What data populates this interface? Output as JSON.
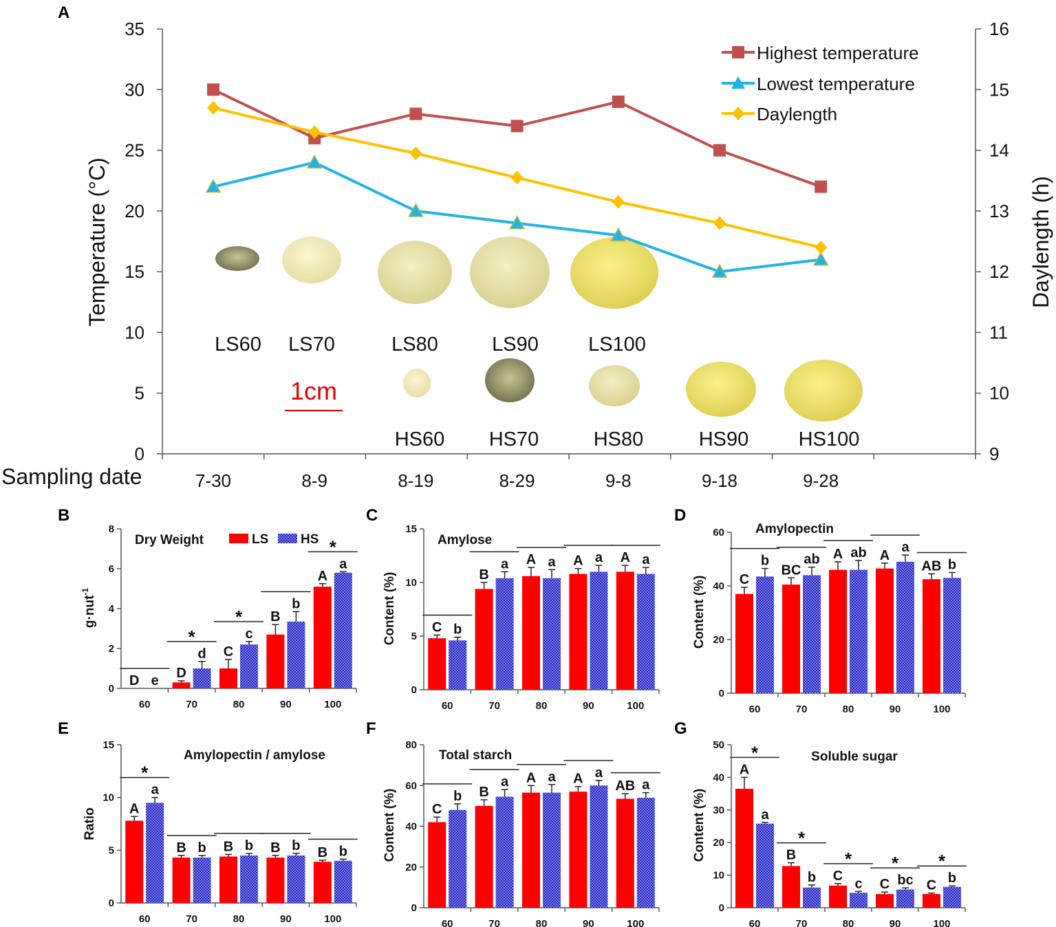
{
  "chart_data": [
    {
      "panel": "A",
      "type": "line",
      "ylabel": "Temperature (°C)",
      "y2label": "Daylength (h)",
      "xlabel": "Sampling date",
      "categories": [
        "7-30",
        "8-9",
        "8-19",
        "8-29",
        "9-8",
        "9-18",
        "9-28"
      ],
      "ylim": [
        0,
        35
      ],
      "yticks": [
        "0",
        "5",
        "10",
        "15",
        "20",
        "25",
        "30",
        "35"
      ],
      "y2lim": [
        9,
        16
      ],
      "y2ticks": [
        "9",
        "10",
        "11",
        "12",
        "13",
        "14",
        "15",
        "16"
      ],
      "series": [
        {
          "name": "Highest temperature",
          "axis": "left",
          "color": "#c0504d",
          "marker": "square",
          "values": [
            30,
            26,
            28,
            27,
            29,
            25,
            22
          ]
        },
        {
          "name": "Lowest temperature",
          "axis": "left",
          "color": "#1fb3e8",
          "marker": "triangle",
          "values": [
            22,
            24,
            20,
            19,
            18,
            15,
            16
          ]
        },
        {
          "name": "Daylength",
          "axis": "right",
          "color": "#ffc000",
          "marker": "diamond",
          "values": [
            14.7,
            14.3,
            13.95,
            13.55,
            13.15,
            12.8,
            12.4
          ]
        }
      ],
      "sample_labels_ls": [
        "LS60",
        "LS70",
        "LS80",
        "LS90",
        "LS100"
      ],
      "sample_labels_hs": [
        "HS60",
        "HS70",
        "HS80",
        "HS90",
        "HS100"
      ],
      "scale_bar_label": "1cm",
      "scale_color": "#e00000"
    },
    {
      "panel": "B",
      "type": "bar",
      "title": "Dry Weight",
      "ylabel": "g·nut",
      "ylabel_sup": "-1",
      "categories": [
        "60",
        "70",
        "80",
        "90",
        "100"
      ],
      "ylim": [
        0,
        8
      ],
      "yticks": [
        "0",
        "2",
        "4",
        "6",
        "8"
      ],
      "legend": [
        "LS",
        "HS"
      ],
      "series": [
        {
          "name": "LS",
          "color": "#ff0000",
          "values": [
            0,
            0.3,
            1.0,
            2.7,
            5.1
          ],
          "errors": [
            0,
            0.08,
            0.45,
            0.5,
            0.15
          ],
          "letters": [
            "D",
            "D",
            "C",
            "B",
            "A"
          ]
        },
        {
          "name": "HS",
          "color": "#4444dd",
          "values": [
            0,
            1.0,
            2.2,
            3.35,
            5.8
          ],
          "errors": [
            0,
            0.35,
            0.15,
            0.5,
            0.05
          ],
          "letters": [
            "e",
            "d",
            "c",
            "b",
            "a"
          ]
        }
      ],
      "significance": [
        "",
        "*",
        "*",
        "",
        "*"
      ]
    },
    {
      "panel": "C",
      "type": "bar",
      "title": "Amylose",
      "ylabel": "Content (%)",
      "categories": [
        "60",
        "70",
        "80",
        "90",
        "100"
      ],
      "ylim": [
        0,
        15
      ],
      "yticks": [
        "0",
        "5",
        "10",
        "15"
      ],
      "series": [
        {
          "name": "LS",
          "color": "#ff0000",
          "values": [
            4.8,
            9.4,
            10.6,
            10.8,
            11.0
          ],
          "errors": [
            0.3,
            0.6,
            0.8,
            0.5,
            0.6
          ],
          "letters": [
            "C",
            "B",
            "A",
            "A",
            "A"
          ]
        },
        {
          "name": "HS",
          "color": "#4444dd",
          "values": [
            4.6,
            10.4,
            10.4,
            11.0,
            10.8
          ],
          "errors": [
            0.3,
            0.6,
            0.8,
            0.6,
            0.6
          ],
          "letters": [
            "b",
            "a",
            "a",
            "a",
            "a"
          ]
        }
      ],
      "significance": [
        "",
        "",
        "",
        "",
        ""
      ]
    },
    {
      "panel": "D",
      "type": "bar",
      "title": "Amylopectin",
      "ylabel": "Content (%)",
      "categories": [
        "60",
        "70",
        "80",
        "90",
        "100"
      ],
      "ylim": [
        0,
        60
      ],
      "yticks": [
        "0",
        "20",
        "40",
        "60"
      ],
      "series": [
        {
          "name": "LS",
          "color": "#ff0000",
          "values": [
            37,
            40.5,
            46,
            46.5,
            42.5
          ],
          "errors": [
            2.5,
            2.5,
            3,
            2,
            2
          ],
          "letters": [
            "C",
            "BC",
            "A",
            "A",
            "AB"
          ]
        },
        {
          "name": "HS",
          "color": "#4444dd",
          "values": [
            43.5,
            44,
            46,
            49,
            43
          ],
          "errors": [
            3,
            3,
            3.5,
            2.5,
            2
          ],
          "letters": [
            "b",
            "ab",
            "ab",
            "a",
            "b"
          ]
        }
      ],
      "significance": [
        "",
        "",
        "",
        "",
        ""
      ]
    },
    {
      "panel": "E",
      "type": "bar",
      "title": "Amylopectin / amylose",
      "ylabel": "Ratio",
      "categories": [
        "60",
        "70",
        "80",
        "90",
        "100"
      ],
      "ylim": [
        0,
        15
      ],
      "yticks": [
        "0",
        "5",
        "10",
        "15"
      ],
      "series": [
        {
          "name": "LS",
          "color": "#ff0000",
          "values": [
            7.8,
            4.3,
            4.4,
            4.3,
            3.9
          ],
          "errors": [
            0.4,
            0.2,
            0.2,
            0.2,
            0.15
          ],
          "letters": [
            "A",
            "B",
            "B",
            "B",
            "B"
          ]
        },
        {
          "name": "HS",
          "color": "#4444dd",
          "values": [
            9.5,
            4.3,
            4.5,
            4.5,
            4.0
          ],
          "errors": [
            0.5,
            0.2,
            0.2,
            0.2,
            0.15
          ],
          "letters": [
            "a",
            "b",
            "b",
            "b",
            "b"
          ]
        }
      ],
      "significance": [
        "*",
        "",
        "",
        "",
        ""
      ]
    },
    {
      "panel": "F",
      "type": "bar",
      "title": "Total starch",
      "ylabel": "Content (%)",
      "categories": [
        "60",
        "70",
        "80",
        "90",
        "100"
      ],
      "ylim": [
        0,
        80
      ],
      "yticks": [
        "0",
        "20",
        "40",
        "60",
        "80"
      ],
      "series": [
        {
          "name": "LS",
          "color": "#ff0000",
          "values": [
            42,
            50,
            56.5,
            57,
            53.5
          ],
          "errors": [
            2.5,
            3,
            3.5,
            2.5,
            2.5
          ],
          "letters": [
            "C",
            "B",
            "A",
            "A",
            "AB"
          ]
        },
        {
          "name": "HS",
          "color": "#4444dd",
          "values": [
            48,
            54.5,
            56.5,
            60,
            54
          ],
          "errors": [
            3,
            3.5,
            4,
            2.5,
            2.5
          ],
          "letters": [
            "b",
            "a",
            "a",
            "a",
            "a"
          ]
        }
      ],
      "significance": [
        "",
        "",
        "",
        "",
        ""
      ]
    },
    {
      "panel": "G",
      "type": "bar",
      "title": "Soluble sugar",
      "ylabel": "Content (%)",
      "categories": [
        "60",
        "70",
        "80",
        "90",
        "100"
      ],
      "ylim": [
        0,
        50
      ],
      "yticks": [
        "0",
        "10",
        "20",
        "30",
        "40",
        "50"
      ],
      "series": [
        {
          "name": "LS",
          "color": "#ff0000",
          "values": [
            36.5,
            12.8,
            6.8,
            4.2,
            4.2
          ],
          "errors": [
            3.5,
            1,
            0.6,
            0.6,
            0.3
          ],
          "letters": [
            "A",
            "B",
            "C",
            "C",
            "C"
          ]
        },
        {
          "name": "HS",
          "color": "#4444dd",
          "values": [
            25.8,
            6.2,
            4.6,
            5.6,
            6.4
          ],
          "errors": [
            0.4,
            0.8,
            0.4,
            0.5,
            0.3
          ],
          "letters": [
            "a",
            "b",
            "c",
            "bc",
            "b"
          ]
        }
      ],
      "significance": [
        "*",
        "*",
        "*",
        "*",
        "*"
      ]
    }
  ]
}
